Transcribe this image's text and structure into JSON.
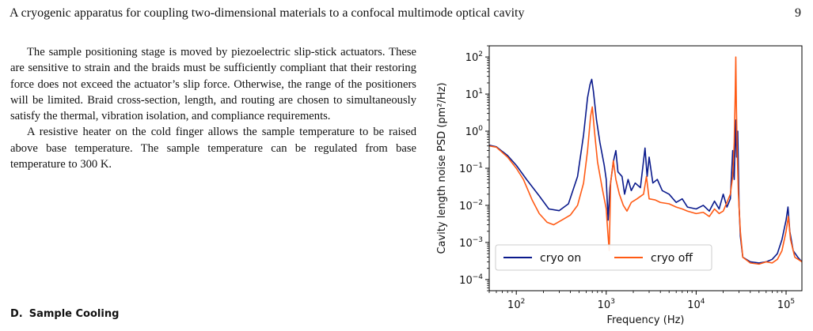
{
  "header": {
    "running_title": "A cryogenic apparatus for coupling two-dimensional materials to a confocal multimode optical cavity",
    "page_number": "9"
  },
  "body": {
    "paragraph_1": "The sample positioning stage is moved by piezoelectric slip-stick actuators. These are sensitive to strain and the braids must be sufficiently compliant that their restoring force does not exceed the actuator’s slip force. Otherwise, the range of the positioners will be limited. Braid cross-section, length, and routing are chosen to simultaneously satisfy the thermal, vibration isolation, and compliance requirements.",
    "paragraph_2": "A resistive heater on the cold finger allows the sample temperature to be raised above base temperature. The sample temperature can be regulated from base temperature to 300 K.",
    "section": {
      "letter": "D.",
      "title": "Sample Cooling"
    }
  },
  "chart_data": {
    "type": "line",
    "xlabel": "Frequency (Hz)",
    "ylabel": "Cavity length noise PSD (pm²/Hz)",
    "xscale": "log",
    "yscale": "log",
    "xlim": [
      50,
      150000
    ],
    "ylim": [
      5e-05,
      200
    ],
    "x_ticks": [
      {
        "value": 100,
        "base": "10",
        "exp": "2"
      },
      {
        "value": 1000,
        "base": "10",
        "exp": "3"
      },
      {
        "value": 10000,
        "base": "10",
        "exp": "4"
      },
      {
        "value": 100000,
        "base": "10",
        "exp": "5"
      }
    ],
    "y_ticks": [
      {
        "value": 100,
        "base": "10",
        "exp": "2"
      },
      {
        "value": 10,
        "base": "10",
        "exp": "1"
      },
      {
        "value": 1,
        "base": "10",
        "exp": "0"
      },
      {
        "value": 0.1,
        "base": "10",
        "exp": "−1"
      },
      {
        "value": 0.01,
        "base": "10",
        "exp": "−2"
      },
      {
        "value": 0.001,
        "base": "10",
        "exp": "−3"
      },
      {
        "value": 0.0001,
        "base": "10",
        "exp": "−4"
      }
    ],
    "legend": {
      "placement": "lower-center"
    },
    "series": [
      {
        "name": "cryo on",
        "color": "#0a1a8c",
        "points": [
          [
            50,
            0.42
          ],
          [
            60,
            0.38
          ],
          [
            80,
            0.22
          ],
          [
            100,
            0.12
          ],
          [
            130,
            0.05
          ],
          [
            180,
            0.018
          ],
          [
            230,
            0.008
          ],
          [
            300,
            0.0072
          ],
          [
            380,
            0.011
          ],
          [
            480,
            0.06
          ],
          [
            560,
            0.8
          ],
          [
            620,
            8
          ],
          [
            660,
            18
          ],
          [
            690,
            25
          ],
          [
            720,
            12
          ],
          [
            780,
            2
          ],
          [
            850,
            0.5
          ],
          [
            950,
            0.12
          ],
          [
            1000,
            0.05
          ],
          [
            1050,
            0.004
          ],
          [
            1100,
            0.03
          ],
          [
            1200,
            0.15
          ],
          [
            1280,
            0.3
          ],
          [
            1350,
            0.08
          ],
          [
            1500,
            0.06
          ],
          [
            1600,
            0.02
          ],
          [
            1750,
            0.05
          ],
          [
            1900,
            0.025
          ],
          [
            2100,
            0.04
          ],
          [
            2400,
            0.03
          ],
          [
            2700,
            0.35
          ],
          [
            2850,
            0.06
          ],
          [
            3000,
            0.2
          ],
          [
            3300,
            0.04
          ],
          [
            3700,
            0.05
          ],
          [
            4200,
            0.025
          ],
          [
            5000,
            0.02
          ],
          [
            6000,
            0.012
          ],
          [
            7000,
            0.015
          ],
          [
            8000,
            0.009
          ],
          [
            10000,
            0.008
          ],
          [
            12000,
            0.01
          ],
          [
            14000,
            0.007
          ],
          [
            16000,
            0.013
          ],
          [
            18000,
            0.008
          ],
          [
            20000,
            0.02
          ],
          [
            22000,
            0.009
          ],
          [
            24000,
            0.015
          ],
          [
            25500,
            0.3
          ],
          [
            26500,
            0.05
          ],
          [
            27500,
            2
          ],
          [
            28200,
            0.2
          ],
          [
            29000,
            1
          ],
          [
            30000,
            0.01
          ],
          [
            31000,
            0.0015
          ],
          [
            33000,
            0.0004
          ],
          [
            40000,
            0.0003
          ],
          [
            50000,
            0.00028
          ],
          [
            60000,
            0.0003
          ],
          [
            70000,
            0.00035
          ],
          [
            80000,
            0.0005
          ],
          [
            90000,
            0.0012
          ],
          [
            100000,
            0.004
          ],
          [
            105000,
            0.009
          ],
          [
            110000,
            0.002
          ],
          [
            120000,
            0.0006
          ],
          [
            135000,
            0.0004
          ],
          [
            150000,
            0.0003
          ]
        ]
      },
      {
        "name": "cryo off",
        "color": "#ff5a14",
        "points": [
          [
            50,
            0.4
          ],
          [
            60,
            0.37
          ],
          [
            80,
            0.2
          ],
          [
            100,
            0.1
          ],
          [
            120,
            0.05
          ],
          [
            150,
            0.014
          ],
          [
            180,
            0.006
          ],
          [
            220,
            0.0035
          ],
          [
            260,
            0.003
          ],
          [
            320,
            0.004
          ],
          [
            400,
            0.0055
          ],
          [
            480,
            0.01
          ],
          [
            560,
            0.04
          ],
          [
            620,
            0.3
          ],
          [
            670,
            2.5
          ],
          [
            700,
            4.5
          ],
          [
            740,
            1
          ],
          [
            800,
            0.15
          ],
          [
            900,
            0.03
          ],
          [
            1000,
            0.008
          ],
          [
            1040,
            0.002
          ],
          [
            1080,
            0.0006
          ],
          [
            1120,
            0.04
          ],
          [
            1200,
            0.16
          ],
          [
            1280,
            0.05
          ],
          [
            1400,
            0.02
          ],
          [
            1550,
            0.01
          ],
          [
            1700,
            0.007
          ],
          [
            1900,
            0.012
          ],
          [
            2200,
            0.015
          ],
          [
            2600,
            0.02
          ],
          [
            2800,
            0.06
          ],
          [
            3000,
            0.015
          ],
          [
            3500,
            0.014
          ],
          [
            4000,
            0.012
          ],
          [
            5000,
            0.011
          ],
          [
            6000,
            0.009
          ],
          [
            7000,
            0.008
          ],
          [
            8000,
            0.007
          ],
          [
            10000,
            0.006
          ],
          [
            12000,
            0.0065
          ],
          [
            14000,
            0.005
          ],
          [
            16000,
            0.008
          ],
          [
            18000,
            0.006
          ],
          [
            20000,
            0.007
          ],
          [
            22000,
            0.012
          ],
          [
            24000,
            0.02
          ],
          [
            25500,
            0.06
          ],
          [
            26500,
            0.5
          ],
          [
            27200,
            10
          ],
          [
            27600,
            100
          ],
          [
            28000,
            5
          ],
          [
            28600,
            0.3
          ],
          [
            29500,
            0.02
          ],
          [
            31000,
            0.002
          ],
          [
            33000,
            0.0004
          ],
          [
            40000,
            0.00028
          ],
          [
            50000,
            0.00026
          ],
          [
            60000,
            0.0003
          ],
          [
            70000,
            0.00028
          ],
          [
            80000,
            0.00035
          ],
          [
            90000,
            0.0006
          ],
          [
            100000,
            0.002
          ],
          [
            106000,
            0.005
          ],
          [
            112000,
            0.0012
          ],
          [
            125000,
            0.0004
          ],
          [
            150000,
            0.0003
          ]
        ]
      }
    ]
  }
}
